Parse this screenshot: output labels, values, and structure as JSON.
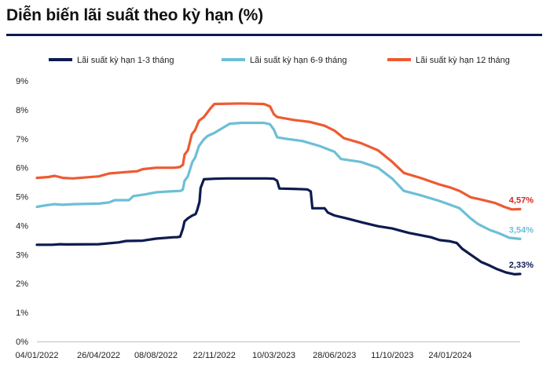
{
  "title": "Diễn biến lãi suất theo kỳ hạn (%)",
  "chart_data": {
    "type": "line",
    "title": "Diễn biến lãi suất theo kỳ hạn (%)",
    "x_tick_labels": [
      "04/01/2022",
      "26/04/2022",
      "08/08/2022",
      "22/11/2022",
      "10/03/2023",
      "28/06/2023",
      "11/10/2023",
      "24/01/2024"
    ],
    "x_start": "04/01/2022",
    "x_end": "30/05/2024",
    "y_tick_labels": [
      "0%",
      "1%",
      "2%",
      "3%",
      "4%",
      "5%",
      "6%",
      "7%",
      "8%",
      "9%"
    ],
    "ylim": [
      0,
      9
    ],
    "grid": false,
    "legend_position": "top",
    "series": [
      {
        "name": "Lãi suất kỳ hạn 1-3 tháng",
        "color": "#0d1b4f",
        "end_label": "2,33%",
        "points": [
          [
            "2022-01-04",
            3.34
          ],
          [
            "2022-02-01",
            3.34
          ],
          [
            "2022-02-15",
            3.36
          ],
          [
            "2022-02-25",
            3.35
          ],
          [
            "2022-04-26",
            3.36
          ],
          [
            "2022-06-01",
            3.42
          ],
          [
            "2022-06-15",
            3.47
          ],
          [
            "2022-07-15",
            3.48
          ],
          [
            "2022-08-08",
            3.55
          ],
          [
            "2022-09-10",
            3.6
          ],
          [
            "2022-09-15",
            3.6
          ],
          [
            "2022-09-21",
            3.62
          ],
          [
            "2022-09-26",
            3.9
          ],
          [
            "2022-09-29",
            4.15
          ],
          [
            "2022-10-05",
            4.25
          ],
          [
            "2022-10-12",
            4.34
          ],
          [
            "2022-10-19",
            4.4
          ],
          [
            "2022-10-22",
            4.55
          ],
          [
            "2022-10-26",
            4.82
          ],
          [
            "2022-10-28",
            5.3
          ],
          [
            "2022-11-03",
            5.6
          ],
          [
            "2022-11-22",
            5.62
          ],
          [
            "2022-12-15",
            5.63
          ],
          [
            "2023-02-25",
            5.63
          ],
          [
            "2023-03-10",
            5.62
          ],
          [
            "2023-03-16",
            5.55
          ],
          [
            "2023-03-20",
            5.28
          ],
          [
            "2023-04-15",
            5.27
          ],
          [
            "2023-05-10",
            5.25
          ],
          [
            "2023-05-16",
            5.18
          ],
          [
            "2023-05-19",
            4.6
          ],
          [
            "2023-06-10",
            4.6
          ],
          [
            "2023-06-16",
            4.45
          ],
          [
            "2023-06-28",
            4.35
          ],
          [
            "2023-07-20",
            4.25
          ],
          [
            "2023-08-20",
            4.1
          ],
          [
            "2023-09-15",
            3.98
          ],
          [
            "2023-10-11",
            3.9
          ],
          [
            "2023-11-10",
            3.75
          ],
          [
            "2023-12-20",
            3.6
          ],
          [
            "2024-01-05",
            3.5
          ],
          [
            "2024-01-24",
            3.46
          ],
          [
            "2024-02-05",
            3.4
          ],
          [
            "2024-02-15",
            3.2
          ],
          [
            "2024-03-01",
            3.0
          ],
          [
            "2024-03-20",
            2.75
          ],
          [
            "2024-04-05",
            2.62
          ],
          [
            "2024-04-18",
            2.5
          ],
          [
            "2024-05-05",
            2.38
          ],
          [
            "2024-05-20",
            2.32
          ],
          [
            "2024-05-30",
            2.33
          ]
        ]
      },
      {
        "name": "Lãi suất kỳ hạn 6-9 tháng",
        "color": "#6cbfd6",
        "end_label": "3,54%",
        "points": [
          [
            "2022-01-04",
            4.65
          ],
          [
            "2022-01-20",
            4.7
          ],
          [
            "2022-02-05",
            4.74
          ],
          [
            "2022-02-20",
            4.72
          ],
          [
            "2022-03-10",
            4.74
          ],
          [
            "2022-04-26",
            4.76
          ],
          [
            "2022-05-15",
            4.8
          ],
          [
            "2022-05-25",
            4.88
          ],
          [
            "2022-06-20",
            4.88
          ],
          [
            "2022-06-28",
            5.02
          ],
          [
            "2022-07-20",
            5.08
          ],
          [
            "2022-08-08",
            5.15
          ],
          [
            "2022-09-01",
            5.18
          ],
          [
            "2022-09-22",
            5.2
          ],
          [
            "2022-09-26",
            5.25
          ],
          [
            "2022-09-29",
            5.55
          ],
          [
            "2022-10-05",
            5.7
          ],
          [
            "2022-10-13",
            6.2
          ],
          [
            "2022-10-18",
            6.35
          ],
          [
            "2022-10-25",
            6.75
          ],
          [
            "2022-11-03",
            6.98
          ],
          [
            "2022-11-10",
            7.1
          ],
          [
            "2022-11-22",
            7.2
          ],
          [
            "2022-12-05",
            7.35
          ],
          [
            "2022-12-20",
            7.52
          ],
          [
            "2023-01-10",
            7.55
          ],
          [
            "2023-02-20",
            7.55
          ],
          [
            "2023-03-03",
            7.5
          ],
          [
            "2023-03-10",
            7.32
          ],
          [
            "2023-03-16",
            7.05
          ],
          [
            "2023-04-01",
            7.0
          ],
          [
            "2023-05-01",
            6.92
          ],
          [
            "2023-06-01",
            6.75
          ],
          [
            "2023-06-28",
            6.55
          ],
          [
            "2023-07-10",
            6.3
          ],
          [
            "2023-08-15",
            6.2
          ],
          [
            "2023-09-15",
            6.0
          ],
          [
            "2023-10-11",
            5.62
          ],
          [
            "2023-11-01",
            5.2
          ],
          [
            "2023-12-01",
            5.05
          ],
          [
            "2024-01-05",
            4.85
          ],
          [
            "2024-01-24",
            4.72
          ],
          [
            "2024-02-10",
            4.6
          ],
          [
            "2024-03-01",
            4.25
          ],
          [
            "2024-03-15",
            4.05
          ],
          [
            "2024-04-05",
            3.85
          ],
          [
            "2024-04-20",
            3.75
          ],
          [
            "2024-05-10",
            3.58
          ],
          [
            "2024-05-30",
            3.54
          ]
        ]
      },
      {
        "name": "Lãi suất kỳ hạn 12 tháng",
        "color": "#ee5a32",
        "end_label": "4,57%",
        "points": [
          [
            "2022-01-04",
            5.65
          ],
          [
            "2022-01-25",
            5.68
          ],
          [
            "2022-02-05",
            5.72
          ],
          [
            "2022-02-20",
            5.65
          ],
          [
            "2022-03-10",
            5.63
          ],
          [
            "2022-04-26",
            5.7
          ],
          [
            "2022-05-15",
            5.8
          ],
          [
            "2022-06-15",
            5.85
          ],
          [
            "2022-07-05",
            5.88
          ],
          [
            "2022-07-15",
            5.95
          ],
          [
            "2022-08-08",
            6.0
          ],
          [
            "2022-09-10",
            6.0
          ],
          [
            "2022-09-20",
            6.02
          ],
          [
            "2022-09-26",
            6.1
          ],
          [
            "2022-09-29",
            6.45
          ],
          [
            "2022-10-05",
            6.6
          ],
          [
            "2022-10-12",
            7.15
          ],
          [
            "2022-10-18",
            7.3
          ],
          [
            "2022-10-25",
            7.62
          ],
          [
            "2022-11-03",
            7.75
          ],
          [
            "2022-11-15",
            8.05
          ],
          [
            "2022-11-22",
            8.2
          ],
          [
            "2023-01-10",
            8.22
          ],
          [
            "2023-02-20",
            8.2
          ],
          [
            "2023-03-03",
            8.12
          ],
          [
            "2023-03-10",
            7.85
          ],
          [
            "2023-03-16",
            7.75
          ],
          [
            "2023-04-15",
            7.65
          ],
          [
            "2023-05-15",
            7.58
          ],
          [
            "2023-06-10",
            7.45
          ],
          [
            "2023-06-28",
            7.28
          ],
          [
            "2023-07-15",
            7.02
          ],
          [
            "2023-08-15",
            6.85
          ],
          [
            "2023-09-15",
            6.6
          ],
          [
            "2023-10-11",
            6.2
          ],
          [
            "2023-11-01",
            5.82
          ],
          [
            "2023-12-01",
            5.65
          ],
          [
            "2024-01-05",
            5.42
          ],
          [
            "2024-01-24",
            5.32
          ],
          [
            "2024-02-10",
            5.2
          ],
          [
            "2024-03-01",
            4.98
          ],
          [
            "2024-03-20",
            4.9
          ],
          [
            "2024-04-15",
            4.78
          ],
          [
            "2024-05-01",
            4.65
          ],
          [
            "2024-05-15",
            4.56
          ],
          [
            "2024-05-30",
            4.57
          ]
        ]
      }
    ]
  }
}
